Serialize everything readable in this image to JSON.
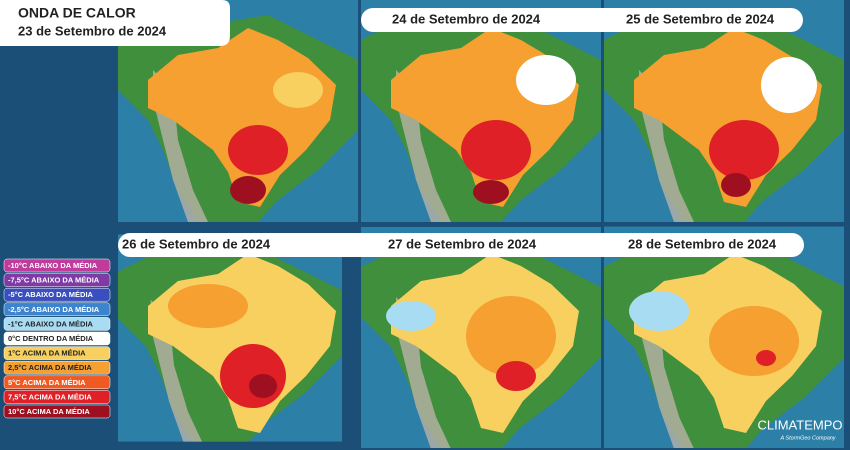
{
  "header": {
    "title": "ONDA DE CALOR",
    "subtitle": "23 de Setembro de 2024"
  },
  "panels": [
    {
      "date": "24 de Setembro de 2024"
    },
    {
      "date": "25 de Setembro de 2024"
    },
    {
      "date": "26 de Setembro de 2024"
    },
    {
      "date": "27 de Setembro de 2024"
    },
    {
      "date": "28 de Setembro de 2024"
    }
  ],
  "legend": [
    {
      "label": "-10°C ABAIXO DA MÉDIA",
      "color": "#c03c9c"
    },
    {
      "label": "-7,5°C ABAIXO DA MÉDIA",
      "color": "#7f3aa6"
    },
    {
      "label": "-5°C ABAIXO DA MÉDIA",
      "color": "#3a4fbf"
    },
    {
      "label": "-2,5°C ABAIXO DA MÉDIA",
      "color": "#3d84cf"
    },
    {
      "label": "-1°C ABAIXO DA MÉDIA",
      "color": "#a8dcf2"
    },
    {
      "label": "0°C DENTRO DA MÉDIA",
      "color": "#ffffff"
    },
    {
      "label": "1°C ACIMA DA MÉDIA",
      "color": "#f7d060"
    },
    {
      "label": "2,5°C ACIMA DA MÉDIA",
      "color": "#f5a030"
    },
    {
      "label": "5°C ACIMA DA MÉDIA",
      "color": "#f05a22"
    },
    {
      "label": "7,5°C ACIMA DA MÉDIA",
      "color": "#df2026"
    },
    {
      "label": "10°C ACIMA DA MÉDIA",
      "color": "#9e1020"
    }
  ],
  "logo": {
    "name": "CLIMATEMPO",
    "tagline": "A StormGeo Company"
  }
}
